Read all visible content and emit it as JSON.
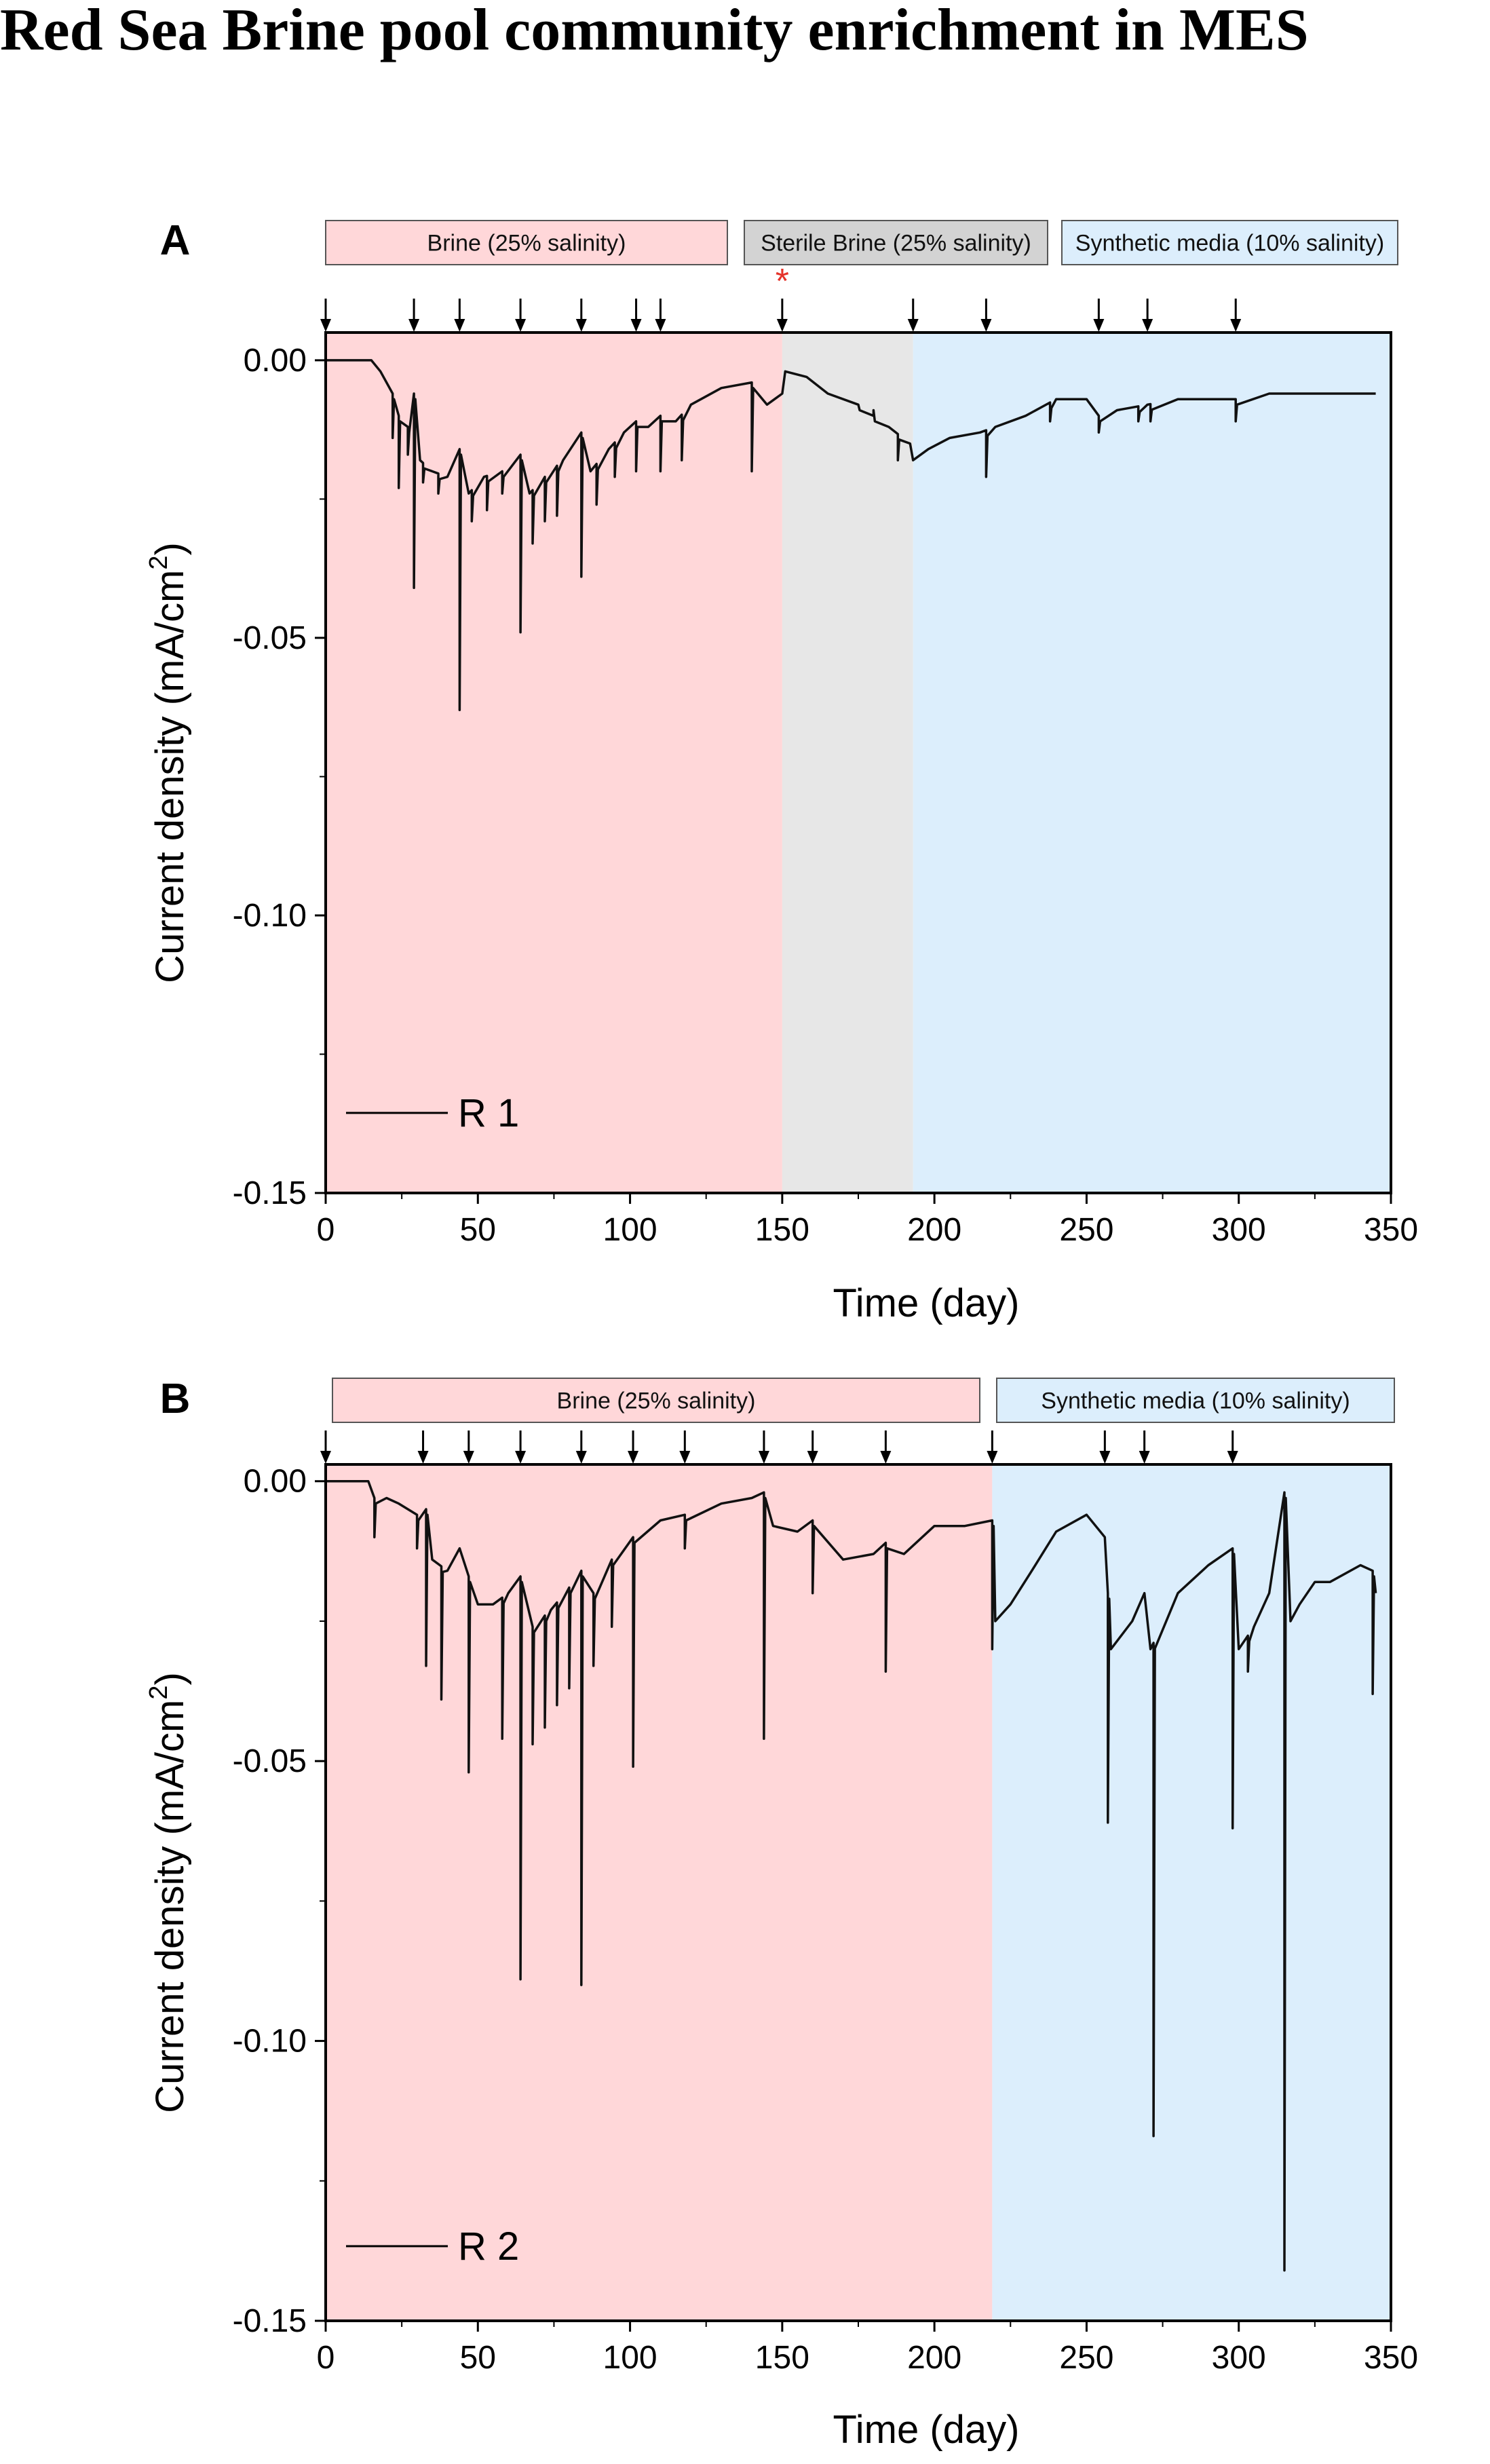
{
  "title": "Red Sea Brine pool community enrichment in MES",
  "colors": {
    "brine": "#FFD7D9",
    "sterile": "#E7E7E7",
    "synthetic": "#DCEEFC",
    "sterile_label_bg": "#D3D3D3",
    "trace": "#111111",
    "asterisk": "#E5332A"
  },
  "chart_data": [
    {
      "type": "line",
      "panel_label": "A",
      "xlabel": "Time (day)",
      "ylabel": "Current density (mA/cm",
      "ylabel_sup": "2",
      "ylabel_tail": ")",
      "xlim": [
        0,
        350
      ],
      "ylim": [
        -0.15,
        0.005
      ],
      "xticks": [
        0,
        50,
        100,
        150,
        200,
        250,
        300,
        350
      ],
      "xtick_labels": [
        "0",
        "50",
        "100",
        "150",
        "200",
        "250",
        "300",
        "350"
      ],
      "yticks": [
        0.0,
        -0.05,
        -0.1,
        -0.15
      ],
      "ytick_labels": [
        "0.00",
        "-0.05",
        "-0.10",
        "-0.15"
      ],
      "phases": [
        {
          "label": "Brine (25% salinity)",
          "start": 0,
          "end": 150,
          "color_key": "brine"
        },
        {
          "label": "Sterile Brine (25% salinity)",
          "start": 150,
          "end": 193,
          "color_key": "sterile"
        },
        {
          "label": "Synthetic media (10% salinity)",
          "start": 193,
          "end": 350,
          "color_key": "synthetic"
        }
      ],
      "arrows": [
        0,
        29,
        44,
        64,
        84,
        102,
        110,
        150,
        193,
        217,
        254,
        270,
        299
      ],
      "asterisk_label": "*",
      "asterisk_day": 150,
      "legend": "R 1",
      "series_name": "R 1",
      "baseline": [
        [
          0,
          0.0
        ],
        [
          15,
          0.0
        ],
        [
          18,
          -0.002
        ],
        [
          22,
          -0.006
        ],
        [
          24,
          -0.01
        ],
        [
          27,
          -0.012
        ],
        [
          29,
          -0.006
        ],
        [
          31,
          -0.018
        ],
        [
          35,
          -0.02
        ],
        [
          40,
          -0.021
        ],
        [
          44,
          -0.016
        ],
        [
          47,
          -0.024
        ],
        [
          52,
          -0.021
        ],
        [
          58,
          -0.02
        ],
        [
          64,
          -0.017
        ],
        [
          67,
          -0.024
        ],
        [
          72,
          -0.021
        ],
        [
          78,
          -0.018
        ],
        [
          84,
          -0.013
        ],
        [
          87,
          -0.02
        ],
        [
          93,
          -0.016
        ],
        [
          98,
          -0.013
        ],
        [
          102,
          -0.011
        ],
        [
          106,
          -0.012
        ],
        [
          110,
          -0.01
        ],
        [
          115,
          -0.011
        ],
        [
          120,
          -0.008
        ],
        [
          130,
          -0.005
        ],
        [
          140,
          -0.004
        ],
        [
          145,
          -0.008
        ],
        [
          150,
          -0.006
        ],
        [
          151,
          -0.002
        ],
        [
          158,
          -0.003
        ],
        [
          165,
          -0.006
        ],
        [
          175,
          -0.008
        ],
        [
          185,
          -0.012
        ],
        [
          192,
          -0.015
        ],
        [
          193,
          -0.018
        ],
        [
          198,
          -0.016
        ],
        [
          205,
          -0.014
        ],
        [
          215,
          -0.013
        ],
        [
          220,
          -0.012
        ],
        [
          230,
          -0.01
        ],
        [
          240,
          -0.007
        ],
        [
          250,
          -0.007
        ],
        [
          254,
          -0.01
        ],
        [
          260,
          -0.009
        ],
        [
          270,
          -0.008
        ],
        [
          280,
          -0.007
        ],
        [
          299,
          -0.007
        ],
        [
          310,
          -0.006
        ],
        [
          330,
          -0.006
        ],
        [
          345,
          -0.006
        ]
      ],
      "spikes": [
        [
          22,
          -0.014
        ],
        [
          24,
          -0.023
        ],
        [
          27,
          -0.017
        ],
        [
          29,
          -0.041
        ],
        [
          32,
          -0.022
        ],
        [
          37,
          -0.024
        ],
        [
          44,
          -0.063
        ],
        [
          48,
          -0.029
        ],
        [
          53,
          -0.027
        ],
        [
          58,
          -0.024
        ],
        [
          64,
          -0.049
        ],
        [
          68,
          -0.033
        ],
        [
          72,
          -0.029
        ],
        [
          76,
          -0.028
        ],
        [
          84,
          -0.039
        ],
        [
          89,
          -0.026
        ],
        [
          95,
          -0.021
        ],
        [
          102,
          -0.02
        ],
        [
          110,
          -0.02
        ],
        [
          117,
          -0.018
        ],
        [
          140,
          -0.02
        ],
        [
          175,
          -0.008
        ],
        [
          180,
          -0.009
        ],
        [
          188,
          -0.018
        ],
        [
          217,
          -0.021
        ],
        [
          238,
          -0.011
        ],
        [
          254,
          -0.013
        ],
        [
          267,
          -0.011
        ],
        [
          271,
          -0.011
        ],
        [
          299,
          -0.011
        ]
      ]
    },
    {
      "type": "line",
      "panel_label": "B",
      "xlabel": "Time (day)",
      "ylabel": "Current density (mA/cm",
      "ylabel_sup": "2",
      "ylabel_tail": ")",
      "xlim": [
        0,
        350
      ],
      "ylim": [
        -0.15,
        0.003
      ],
      "xticks": [
        0,
        50,
        100,
        150,
        200,
        250,
        300,
        350
      ],
      "xtick_labels": [
        "0",
        "50",
        "100",
        "150",
        "200",
        "250",
        "300",
        "350"
      ],
      "yticks": [
        0.0,
        -0.05,
        -0.1,
        -0.15
      ],
      "ytick_labels": [
        "0.00",
        "-0.05",
        "-0.10",
        "-0.15"
      ],
      "phases": [
        {
          "label": "Brine (25% salinity)",
          "start": 0,
          "end": 219,
          "color_key": "brine"
        },
        {
          "label": "Synthetic media (10% salinity)",
          "start": 219,
          "end": 350,
          "color_key": "synthetic"
        }
      ],
      "arrows": [
        0,
        32,
        47,
        64,
        84,
        101,
        118,
        144,
        160,
        184,
        219,
        256,
        269,
        298
      ],
      "legend": "R 2",
      "series_name": "R 2",
      "baseline": [
        [
          0,
          0.0
        ],
        [
          14,
          0.0
        ],
        [
          16,
          -0.003
        ],
        [
          20,
          -0.003
        ],
        [
          24,
          -0.004
        ],
        [
          30,
          -0.006
        ],
        [
          33,
          -0.005
        ],
        [
          35,
          -0.014
        ],
        [
          40,
          -0.016
        ],
        [
          44,
          -0.012
        ],
        [
          47,
          -0.017
        ],
        [
          50,
          -0.022
        ],
        [
          55,
          -0.022
        ],
        [
          60,
          -0.02
        ],
        [
          64,
          -0.017
        ],
        [
          68,
          -0.026
        ],
        [
          74,
          -0.023
        ],
        [
          80,
          -0.019
        ],
        [
          84,
          -0.016
        ],
        [
          88,
          -0.02
        ],
        [
          94,
          -0.014
        ],
        [
          101,
          -0.01
        ],
        [
          110,
          -0.007
        ],
        [
          118,
          -0.006
        ],
        [
          130,
          -0.004
        ],
        [
          140,
          -0.003
        ],
        [
          144,
          -0.002
        ],
        [
          147,
          -0.008
        ],
        [
          155,
          -0.009
        ],
        [
          160,
          -0.007
        ],
        [
          170,
          -0.014
        ],
        [
          180,
          -0.013
        ],
        [
          184,
          -0.011
        ],
        [
          190,
          -0.013
        ],
        [
          200,
          -0.008
        ],
        [
          210,
          -0.008
        ],
        [
          219,
          -0.007
        ],
        [
          220,
          -0.025
        ],
        [
          225,
          -0.022
        ],
        [
          232,
          -0.016
        ],
        [
          240,
          -0.009
        ],
        [
          250,
          -0.006
        ],
        [
          256,
          -0.01
        ],
        [
          258,
          -0.03
        ],
        [
          265,
          -0.025
        ],
        [
          269,
          -0.02
        ],
        [
          271,
          -0.03
        ],
        [
          280,
          -0.02
        ],
        [
          290,
          -0.015
        ],
        [
          298,
          -0.012
        ],
        [
          300,
          -0.03
        ],
        [
          305,
          -0.026
        ],
        [
          310,
          -0.02
        ],
        [
          315,
          -0.002
        ],
        [
          317,
          -0.025
        ],
        [
          320,
          -0.022
        ],
        [
          325,
          -0.018
        ],
        [
          330,
          -0.018
        ],
        [
          340,
          -0.015
        ],
        [
          344,
          -0.016
        ],
        [
          345,
          -0.02
        ]
      ],
      "spikes": [
        [
          16,
          -0.01
        ],
        [
          30,
          -0.012
        ],
        [
          33,
          -0.033
        ],
        [
          38,
          -0.039
        ],
        [
          47,
          -0.052
        ],
        [
          58,
          -0.046
        ],
        [
          64,
          -0.089
        ],
        [
          68,
          -0.047
        ],
        [
          72,
          -0.044
        ],
        [
          76,
          -0.04
        ],
        [
          80,
          -0.037
        ],
        [
          84,
          -0.09
        ],
        [
          88,
          -0.033
        ],
        [
          94,
          -0.026
        ],
        [
          101,
          -0.051
        ],
        [
          118,
          -0.012
        ],
        [
          144,
          -0.046
        ],
        [
          160,
          -0.02
        ],
        [
          184,
          -0.034
        ],
        [
          219,
          -0.03
        ],
        [
          257,
          -0.061
        ],
        [
          272,
          -0.117
        ],
        [
          298,
          -0.062
        ],
        [
          303,
          -0.034
        ],
        [
          315,
          -0.141
        ],
        [
          344,
          -0.038
        ]
      ]
    }
  ]
}
